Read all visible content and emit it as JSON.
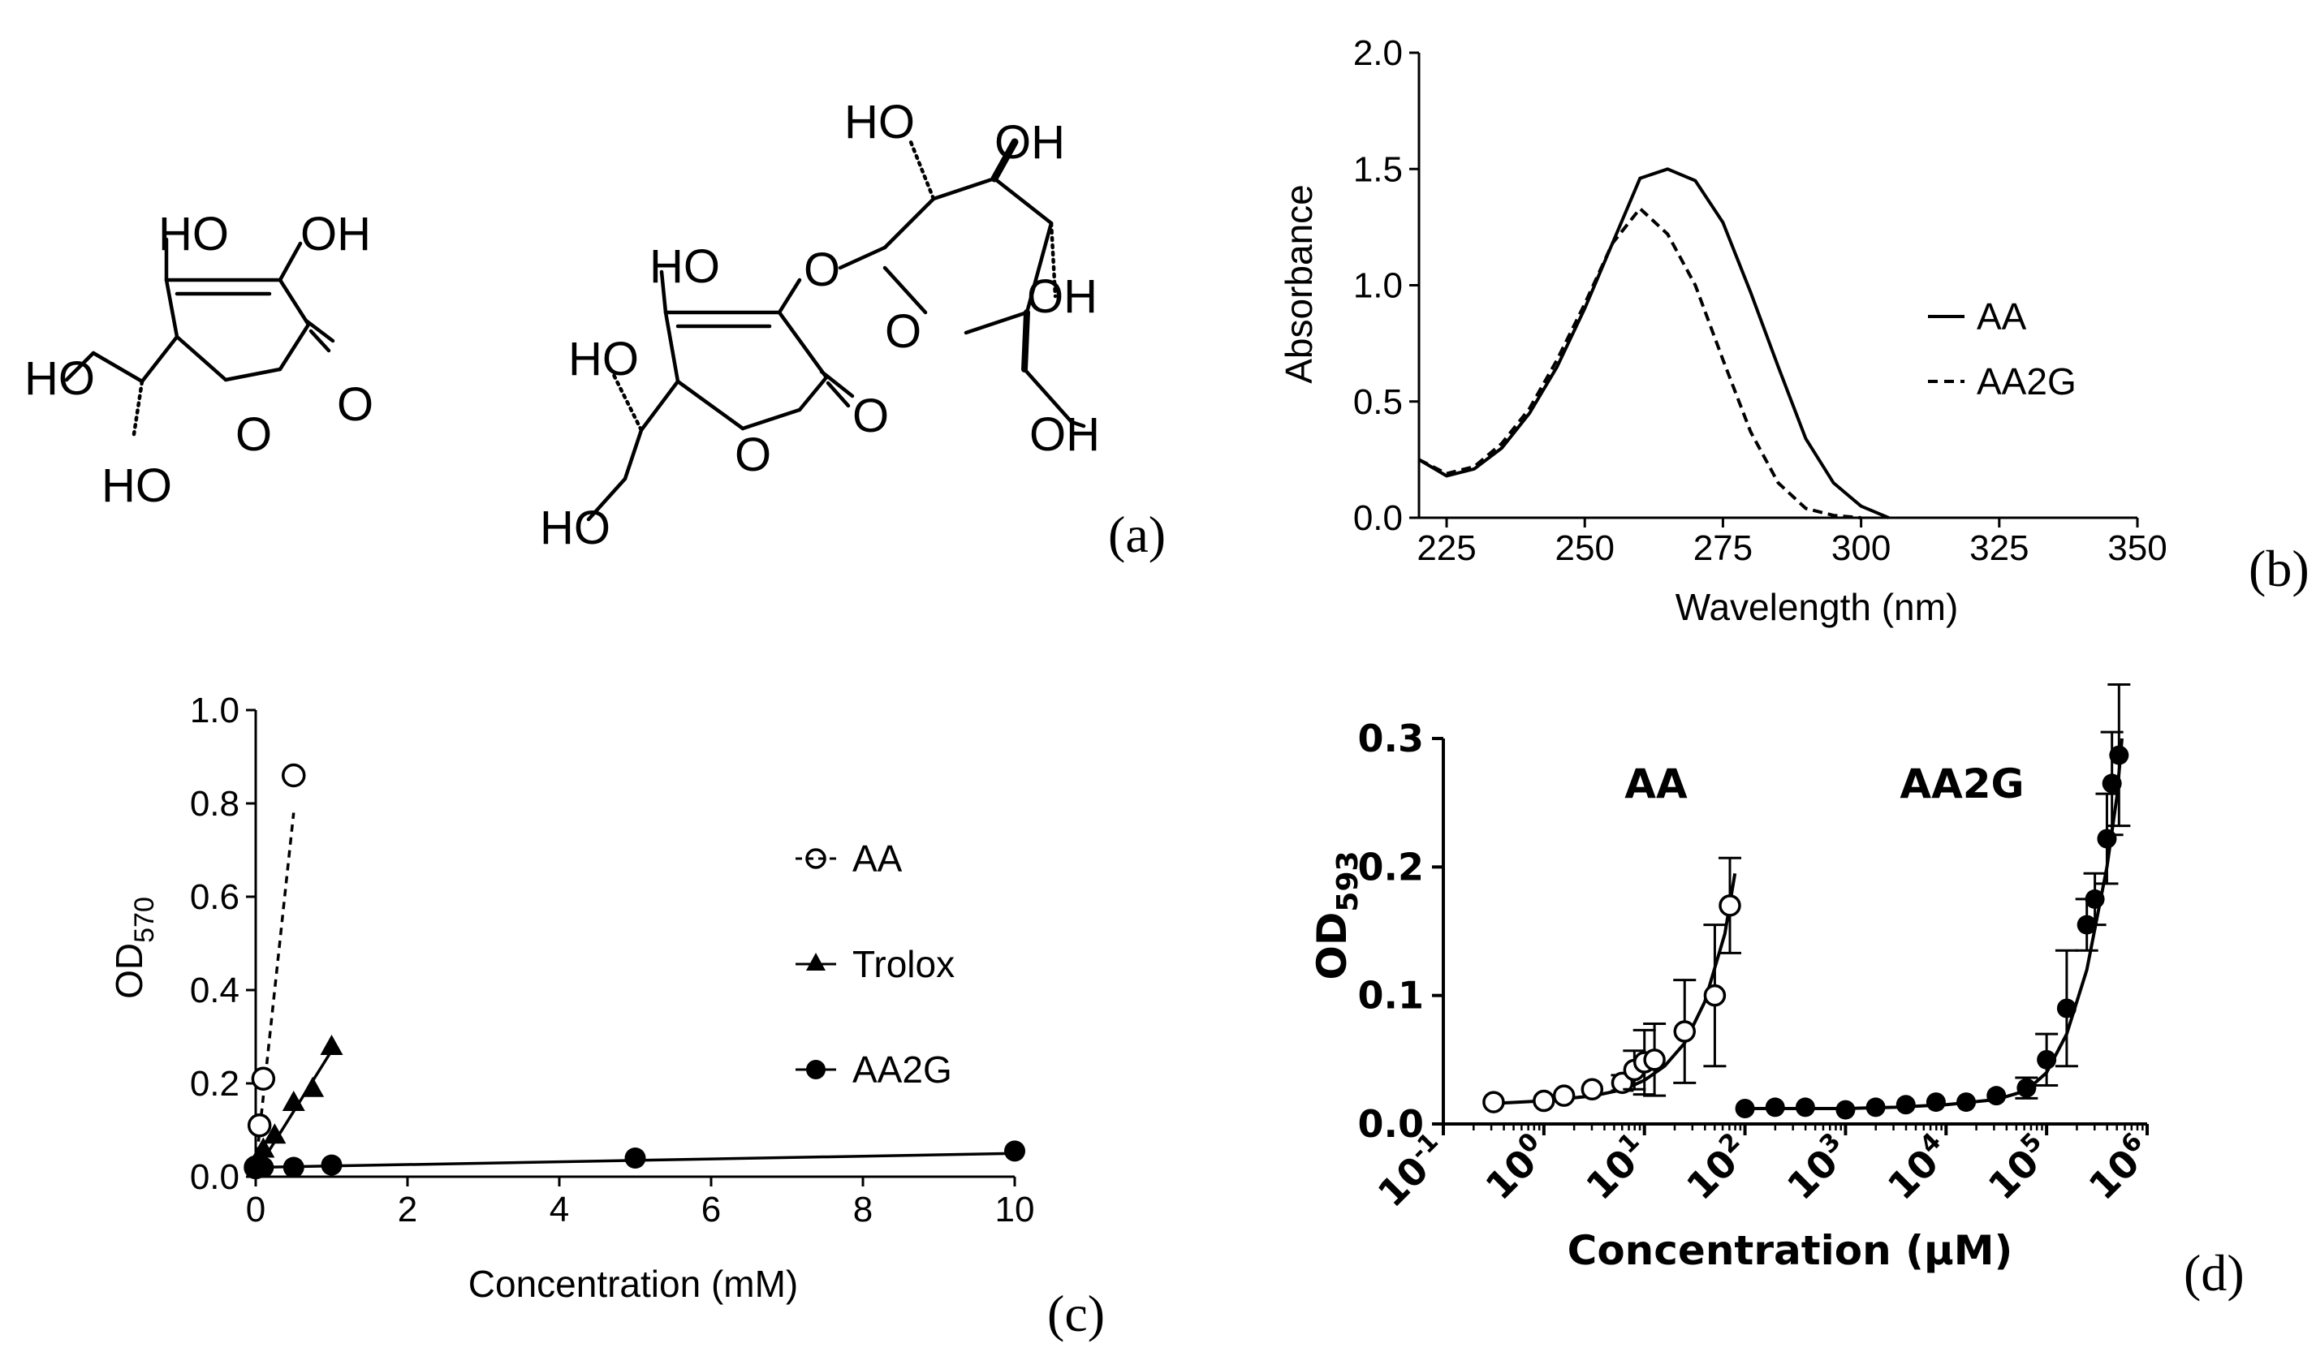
{
  "structures": {
    "panel_label": "(a)",
    "atoms": {
      "ho": "HO",
      "oh": "OH",
      "o": "O"
    }
  },
  "chart_data": [
    {
      "id": "b",
      "panel_label": "(b)",
      "type": "line",
      "xlabel": "Wavelength (nm)",
      "ylabel": "Absorbance",
      "xlim": [
        220,
        350
      ],
      "ylim": [
        0,
        2.0
      ],
      "xticks": [
        "225",
        "250",
        "275",
        "300",
        "325",
        "350"
      ],
      "yticks": [
        "0.0",
        "0.5",
        "1.0",
        "1.5",
        "2.0"
      ],
      "series": [
        {
          "name": "AA",
          "style": "solid",
          "x": [
            220,
            225,
            230,
            235,
            240,
            245,
            250,
            255,
            260,
            265,
            270,
            275,
            280,
            285,
            290,
            295,
            300,
            305
          ],
          "y": [
            0.25,
            0.18,
            0.21,
            0.3,
            0.45,
            0.65,
            0.9,
            1.18,
            1.46,
            1.5,
            1.45,
            1.27,
            0.97,
            0.65,
            0.34,
            0.15,
            0.05,
            0.0
          ]
        },
        {
          "name": "AA2G",
          "style": "dashed",
          "x": [
            220,
            225,
            230,
            235,
            240,
            245,
            250,
            255,
            260,
            265,
            270,
            275,
            280,
            285,
            290,
            295,
            300
          ],
          "y": [
            0.25,
            0.19,
            0.22,
            0.32,
            0.47,
            0.68,
            0.92,
            1.18,
            1.33,
            1.22,
            1.0,
            0.68,
            0.37,
            0.15,
            0.04,
            0.01,
            0.0
          ]
        }
      ],
      "legend": [
        "AA",
        "AA2G"
      ]
    },
    {
      "id": "c",
      "panel_label": "(c)",
      "type": "scatter",
      "xlabel": "Concentration (mM)",
      "ylabel": "OD",
      "ylabel_sub": "570",
      "xlim": [
        0,
        10
      ],
      "ylim": [
        0,
        1.0
      ],
      "xticks": [
        "0",
        "2",
        "4",
        "6",
        "8",
        "10"
      ],
      "yticks": [
        "0.0",
        "0.2",
        "0.4",
        "0.6",
        "0.8",
        "1.0"
      ],
      "series": [
        {
          "name": "AA",
          "marker": "open-circle",
          "x": [
            0,
            0.05,
            0.1,
            0.5
          ],
          "y": [
            0.02,
            0.11,
            0.21,
            0.86
          ],
          "fit": {
            "style": "dashed",
            "x": [
              0,
              0.5
            ],
            "y": [
              0.02,
              0.78
            ]
          }
        },
        {
          "name": "Trolox",
          "marker": "triangle",
          "x": [
            0.05,
            0.1,
            0.25,
            0.5,
            0.75,
            1.0
          ],
          "y": [
            0.03,
            0.06,
            0.09,
            0.16,
            0.19,
            0.28
          ],
          "fit": {
            "style": "solid",
            "x": [
              0,
              1.0
            ],
            "y": [
              0.01,
              0.27
            ]
          }
        },
        {
          "name": "AA2G",
          "marker": "filled-circle",
          "x": [
            0,
            0.05,
            0.1,
            0.5,
            1.0,
            5.0,
            10.0
          ],
          "y": [
            0.02,
            0.02,
            0.02,
            0.02,
            0.025,
            0.04,
            0.055
          ],
          "fit": {
            "style": "solid",
            "x": [
              0,
              10.0
            ],
            "y": [
              0.02,
              0.05
            ]
          }
        }
      ],
      "legend": [
        "AA",
        "Trolox",
        "AA2G"
      ]
    },
    {
      "id": "d",
      "panel_label": "(d)",
      "type": "scatter",
      "xscale": "log",
      "xlabel": "Concentration (µM)",
      "ylabel": "OD",
      "ylabel_sub": "593",
      "xlim_log10": [
        -1,
        6
      ],
      "ylim": [
        0,
        0.3
      ],
      "xticks": [
        {
          "base": "10",
          "exp": "-1"
        },
        {
          "base": "10",
          "exp": "0"
        },
        {
          "base": "10",
          "exp": "1"
        },
        {
          "base": "10",
          "exp": "2"
        },
        {
          "base": "10",
          "exp": "3"
        },
        {
          "base": "10",
          "exp": "4"
        },
        {
          "base": "10",
          "exp": "5"
        },
        {
          "base": "10",
          "exp": "6"
        }
      ],
      "yticks": [
        "0.0",
        "0.1",
        "0.2",
        "0.3"
      ],
      "annotations": [
        "AA",
        "AA2G"
      ],
      "series": [
        {
          "name": "AA",
          "marker": "open-circle",
          "log10x": [
            -0.5,
            0.0,
            0.2,
            0.48,
            0.78,
            0.9,
            1.0,
            1.1,
            1.4,
            1.7,
            1.85
          ],
          "y": [
            0.017,
            0.018,
            0.022,
            0.027,
            0.032,
            0.042,
            0.048,
            0.05,
            0.072,
            0.1,
            0.17
          ],
          "err": [
            0.002,
            0.002,
            0.003,
            0.004,
            0.006,
            0.015,
            0.025,
            0.028,
            0.04,
            0.055,
            0.037
          ],
          "fit_log10x": [
            -0.5,
            0.0,
            0.5,
            0.8,
            1.0,
            1.2,
            1.4,
            1.6,
            1.8,
            1.9
          ],
          "fit_y": [
            0.016,
            0.018,
            0.022,
            0.027,
            0.034,
            0.045,
            0.063,
            0.095,
            0.148,
            0.195
          ]
        },
        {
          "name": "AA2G",
          "marker": "filled-circle",
          "log10x": [
            2.0,
            2.3,
            2.6,
            3.0,
            3.3,
            3.6,
            3.9,
            4.2,
            4.5,
            4.8,
            5.0,
            5.2,
            5.4,
            5.48,
            5.6,
            5.65,
            5.72
          ],
          "y": [
            0.012,
            0.013,
            0.013,
            0.011,
            0.013,
            0.015,
            0.017,
            0.017,
            0.022,
            0.028,
            0.05,
            0.09,
            0.155,
            0.175,
            0.222,
            0.265,
            0.287
          ],
          "err": [
            0.002,
            0.002,
            0.002,
            0.002,
            0.002,
            0.003,
            0.003,
            0.003,
            0.004,
            0.008,
            0.02,
            0.045,
            0.02,
            0.02,
            0.035,
            0.04,
            0.055
          ],
          "fit_log10x": [
            2.0,
            3.0,
            3.5,
            4.0,
            4.5,
            4.8,
            5.0,
            5.2,
            5.4,
            5.6,
            5.7,
            5.75
          ],
          "fit_y": [
            0.012,
            0.012,
            0.013,
            0.015,
            0.019,
            0.026,
            0.04,
            0.07,
            0.12,
            0.2,
            0.255,
            0.3
          ]
        }
      ]
    }
  ]
}
